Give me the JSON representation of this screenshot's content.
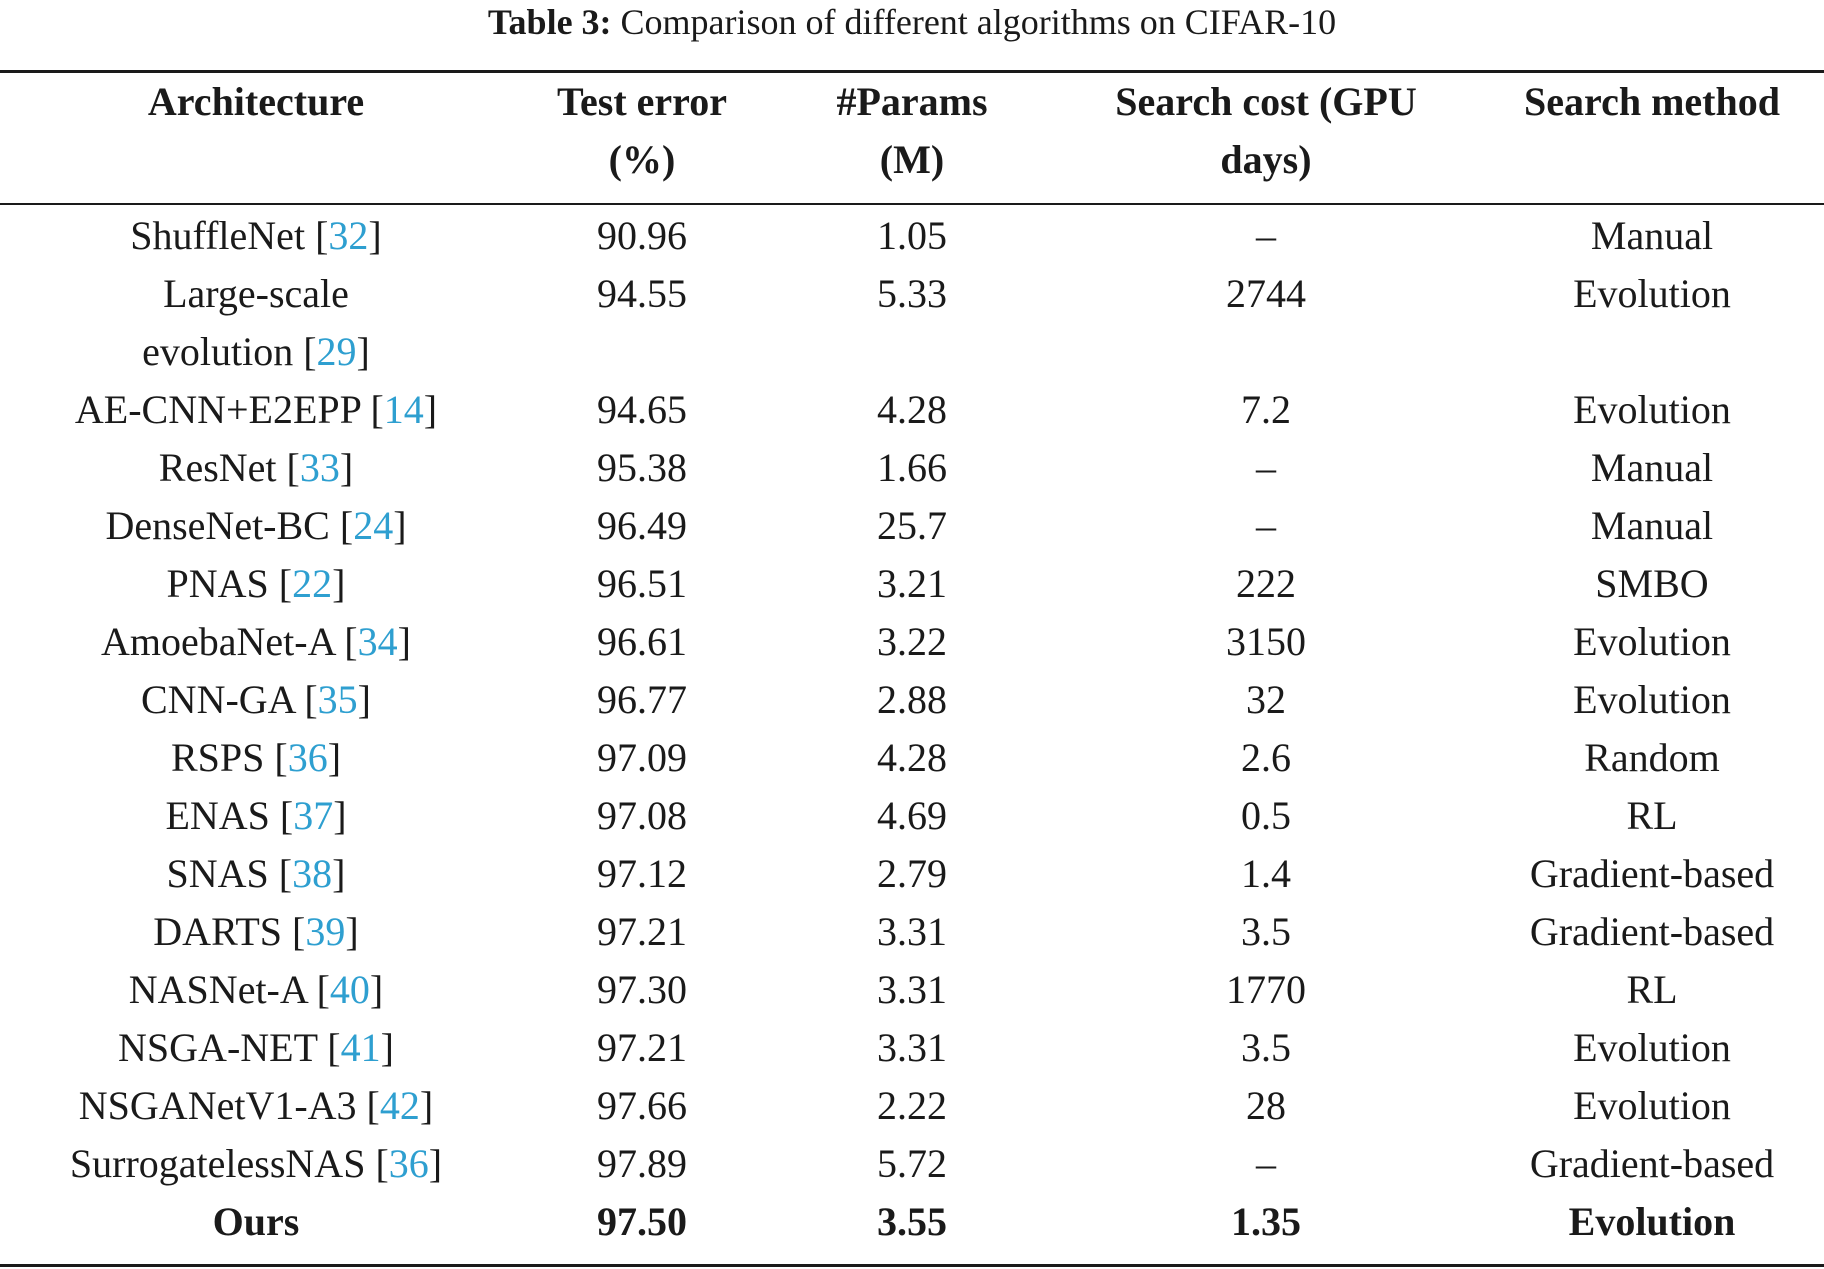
{
  "caption": {
    "label": "Table 3:",
    "text": " Comparison of different algorithms on CIFAR-10"
  },
  "header": {
    "architecture": "Architecture",
    "test_error_l1": "Test error",
    "test_error_l2": "(%)",
    "params_l1": "#Params",
    "params_l2": "(M)",
    "search_cost_l1": "Search cost (GPU",
    "search_cost_l2": "days)",
    "search_method": "Search method"
  },
  "rows": [
    {
      "name": "ShuffleNet ",
      "cite": "32",
      "error": "90.96",
      "params": "1.05",
      "cost": "–",
      "method": "Manual"
    },
    {
      "name": "Large-scale",
      "name2": "evolution ",
      "cite": "29",
      "error": "94.55",
      "params": "5.33",
      "cost": "2744",
      "method": "Evolution"
    },
    {
      "name": "AE-CNN+E2EPP ",
      "cite": "14",
      "error": "94.65",
      "params": "4.28",
      "cost": "7.2",
      "method": "Evolution"
    },
    {
      "name": "ResNet ",
      "cite": "33",
      "error": "95.38",
      "params": "1.66",
      "cost": "–",
      "method": "Manual"
    },
    {
      "name": "DenseNet-BC ",
      "cite": "24",
      "error": "96.49",
      "params": "25.7",
      "cost": "–",
      "method": "Manual"
    },
    {
      "name": "PNAS ",
      "cite": "22",
      "error": "96.51",
      "params": "3.21",
      "cost": "222",
      "method": "SMBO"
    },
    {
      "name": "AmoebaNet-A ",
      "cite": "34",
      "error": "96.61",
      "params": "3.22",
      "cost": "3150",
      "method": "Evolution"
    },
    {
      "name": "CNN-GA ",
      "cite": "35",
      "error": "96.77",
      "params": "2.88",
      "cost": "32",
      "method": "Evolution"
    },
    {
      "name": "RSPS ",
      "cite": "36",
      "error": "97.09",
      "params": "4.28",
      "cost": "2.6",
      "method": "Random"
    },
    {
      "name": "ENAS ",
      "cite": "37",
      "error": "97.08",
      "params": "4.69",
      "cost": "0.5",
      "method": "RL"
    },
    {
      "name": "SNAS ",
      "cite": "38",
      "error": "97.12",
      "params": "2.79",
      "cost": "1.4",
      "method": "Gradient-based"
    },
    {
      "name": "DARTS ",
      "cite": "39",
      "error": "97.21",
      "params": "3.31",
      "cost": "3.5",
      "method": "Gradient-based"
    },
    {
      "name": "NASNet-A ",
      "cite": "40",
      "error": "97.30",
      "params": "3.31",
      "cost": "1770",
      "method": "RL"
    },
    {
      "name": "NSGA-NET ",
      "cite": "41",
      "error": "97.21",
      "params": "3.31",
      "cost": "3.5",
      "method": "Evolution"
    },
    {
      "name": "NSGANetV1-A3 ",
      "cite": "42",
      "error": "97.66",
      "params": "2.22",
      "cost": "28",
      "method": "Evolution"
    },
    {
      "name": "SurrogatelessNAS ",
      "cite": "36",
      "error": "97.89",
      "params": "5.72",
      "cost": "–",
      "method": "Gradient-based"
    }
  ],
  "ours": {
    "name": "Ours",
    "error": "97.50",
    "params": "3.55",
    "cost": "1.35",
    "method": "Evolution"
  }
}
